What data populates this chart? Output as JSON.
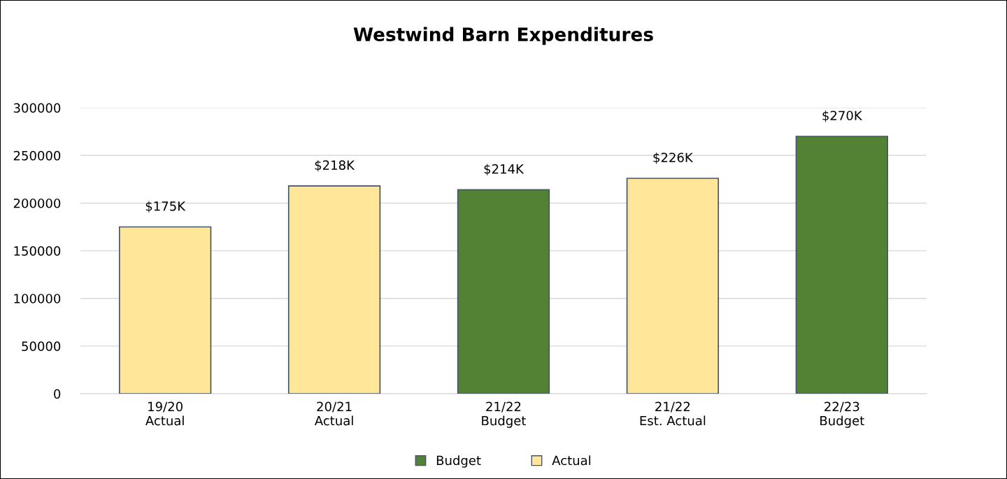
{
  "chart_data": {
    "type": "bar",
    "title": "Westwind Barn Expenditures",
    "categories": [
      "19/20\nActual",
      "20/21\nActual",
      "21/22\nBudget",
      "21/22\nEst. Actual",
      "22/23\nBudget"
    ],
    "series": [
      {
        "name": "Budget",
        "color": "#548235",
        "values": [
          null,
          null,
          214000,
          null,
          270000
        ],
        "value_labels": [
          null,
          null,
          "$214K",
          null,
          "$270K"
        ]
      },
      {
        "name": "Actual",
        "color": "#ffe699",
        "values": [
          175000,
          218000,
          null,
          226000,
          null
        ],
        "value_labels": [
          "$175K",
          "$218K",
          null,
          "$226K",
          null
        ]
      }
    ],
    "ylim": [
      0,
      300000
    ],
    "yticks": [
      0,
      50000,
      100000,
      150000,
      200000,
      250000,
      300000
    ],
    "grid": "y",
    "legend": "bottom"
  }
}
